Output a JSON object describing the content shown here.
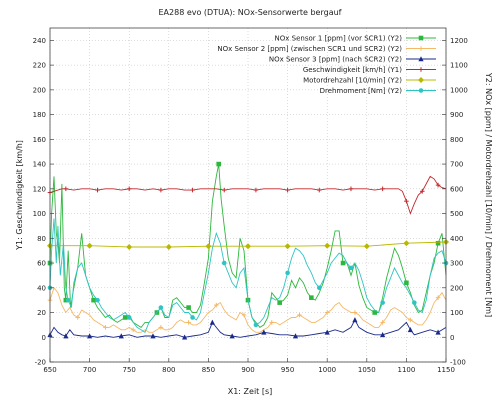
{
  "chart_data": {
    "type": "line",
    "title": "EA288 evo (DTUA): NOx-Sensorwerte bergauf",
    "xlabel": "X1: Zeit [s]",
    "ylabel_left": "Y1: Geschwindigkeit [km/h]",
    "ylabel_right": "Y2: NOx [ppm] / Motordrehzahl [10/min] / Drehmoment [Nm]",
    "xlim": [
      650,
      1150
    ],
    "ylim_left": [
      -20,
      250
    ],
    "ylim_right": [
      -100,
      1250
    ],
    "x_ticks": [
      "650",
      "700",
      "750",
      "800",
      "850",
      "900",
      "950",
      "1000",
      "1050",
      "1100",
      "1150"
    ],
    "y_left_ticks": [
      "-20",
      "0",
      "20",
      "40",
      "60",
      "80",
      "100",
      "120",
      "140",
      "160",
      "180",
      "200",
      "220",
      "240"
    ],
    "y_right_ticks": [
      "-100",
      "0",
      "100",
      "200",
      "300",
      "400",
      "500",
      "600",
      "700",
      "800",
      "900",
      "1000",
      "1100",
      "1200"
    ],
    "grid": true,
    "legend_position": "top-right",
    "series": [
      {
        "name": "NOx Sensor 1 [ppm] (vor SCR1) (Y2)",
        "axis": "right",
        "color": "#2db83d",
        "marker": "square",
        "x": [
          650,
          652,
          655,
          658,
          660,
          662,
          665,
          668,
          670,
          673,
          676,
          680,
          685,
          690,
          695,
          700,
          705,
          710,
          715,
          720,
          725,
          730,
          735,
          740,
          745,
          750,
          755,
          760,
          765,
          770,
          775,
          780,
          785,
          790,
          795,
          800,
          805,
          810,
          815,
          820,
          825,
          830,
          835,
          840,
          845,
          850,
          855,
          860,
          863,
          866,
          870,
          875,
          880,
          885,
          890,
          895,
          900,
          905,
          910,
          915,
          920,
          925,
          930,
          935,
          940,
          945,
          950,
          955,
          960,
          965,
          970,
          975,
          980,
          985,
          990,
          995,
          1000,
          1005,
          1010,
          1015,
          1020,
          1025,
          1030,
          1035,
          1040,
          1045,
          1050,
          1055,
          1060,
          1065,
          1070,
          1075,
          1080,
          1085,
          1090,
          1095,
          1100,
          1105,
          1110,
          1115,
          1120,
          1125,
          1130,
          1135,
          1140,
          1145,
          1150
        ],
        "y": [
          300,
          500,
          650,
          420,
          380,
          300,
          620,
          200,
          150,
          350,
          120,
          200,
          280,
          420,
          250,
          200,
          150,
          120,
          100,
          80,
          90,
          70,
          60,
          70,
          80,
          90,
          60,
          50,
          40,
          60,
          60,
          80,
          100,
          120,
          80,
          80,
          150,
          160,
          140,
          120,
          120,
          100,
          100,
          130,
          220,
          320,
          550,
          650,
          700,
          560,
          450,
          320,
          260,
          240,
          400,
          350,
          150,
          80,
          60,
          40,
          50,
          80,
          180,
          160,
          140,
          150,
          170,
          230,
          200,
          240,
          220,
          180,
          160,
          150,
          180,
          220,
          280,
          350,
          430,
          430,
          300,
          300,
          250,
          300,
          210,
          160,
          120,
          110,
          100,
          100,
          160,
          240,
          300,
          360,
          330,
          280,
          220,
          180,
          130,
          100,
          110,
          180,
          250,
          300,
          380,
          420,
          250
        ]
      },
      {
        "name": "NOx Sensor 2 [ppm] (zwischen SCR1 und SCR2) (Y2)",
        "axis": "right",
        "color": "#f5b865",
        "marker": "plus",
        "x": [
          650,
          655,
          660,
          665,
          670,
          675,
          680,
          685,
          690,
          695,
          700,
          705,
          710,
          715,
          720,
          725,
          730,
          735,
          740,
          745,
          750,
          755,
          760,
          765,
          770,
          775,
          780,
          785,
          790,
          795,
          800,
          805,
          810,
          815,
          820,
          825,
          830,
          835,
          840,
          845,
          850,
          855,
          860,
          865,
          870,
          875,
          880,
          885,
          890,
          895,
          900,
          905,
          910,
          915,
          920,
          925,
          930,
          935,
          940,
          945,
          950,
          955,
          960,
          965,
          970,
          975,
          980,
          985,
          990,
          995,
          1000,
          1005,
          1010,
          1015,
          1020,
          1025,
          1030,
          1035,
          1040,
          1045,
          1050,
          1055,
          1060,
          1065,
          1070,
          1075,
          1080,
          1085,
          1090,
          1095,
          1100,
          1105,
          1110,
          1115,
          1120,
          1125,
          1130,
          1135,
          1140,
          1145,
          1150
        ],
        "y": [
          150,
          200,
          180,
          130,
          100,
          120,
          90,
          80,
          110,
          100,
          90,
          70,
          60,
          50,
          40,
          40,
          50,
          40,
          30,
          30,
          40,
          30,
          20,
          20,
          30,
          20,
          20,
          30,
          40,
          30,
          30,
          40,
          60,
          70,
          60,
          60,
          50,
          50,
          60,
          80,
          100,
          110,
          130,
          140,
          110,
          90,
          80,
          70,
          100,
          90,
          50,
          30,
          20,
          20,
          30,
          40,
          60,
          60,
          50,
          60,
          70,
          80,
          80,
          90,
          80,
          70,
          60,
          60,
          70,
          80,
          100,
          110,
          130,
          140,
          120,
          110,
          100,
          100,
          90,
          70,
          60,
          50,
          40,
          40,
          60,
          80,
          110,
          120,
          110,
          100,
          80,
          70,
          60,
          50,
          50,
          70,
          100,
          140,
          160,
          180,
          150
        ]
      },
      {
        "name": "NOx Sensor 3 [ppm] (nach SCR2) (Y2)",
        "axis": "right",
        "color": "#1a2a8a",
        "marker": "triangle",
        "x": [
          650,
          655,
          660,
          665,
          670,
          675,
          680,
          690,
          700,
          710,
          720,
          730,
          740,
          750,
          760,
          770,
          780,
          790,
          800,
          810,
          820,
          830,
          840,
          850,
          855,
          860,
          865,
          870,
          880,
          890,
          900,
          910,
          920,
          930,
          940,
          950,
          960,
          970,
          980,
          990,
          1000,
          1010,
          1020,
          1030,
          1035,
          1040,
          1050,
          1060,
          1070,
          1080,
          1090,
          1100,
          1105,
          1110,
          1120,
          1130,
          1140,
          1150
        ],
        "y": [
          10,
          40,
          20,
          10,
          5,
          30,
          10,
          5,
          5,
          0,
          5,
          0,
          5,
          10,
          0,
          5,
          5,
          0,
          5,
          10,
          0,
          5,
          10,
          20,
          60,
          40,
          20,
          10,
          5,
          0,
          5,
          10,
          20,
          15,
          10,
          10,
          5,
          5,
          10,
          15,
          20,
          30,
          20,
          40,
          70,
          40,
          20,
          10,
          10,
          20,
          30,
          60,
          30,
          10,
          20,
          30,
          20,
          40
        ]
      },
      {
        "name": "Geschwindigkeit [km/h] (Y1)",
        "axis": "left",
        "color": "#c0282d",
        "marker": "plus",
        "x": [
          650,
          655,
          660,
          665,
          670,
          680,
          690,
          700,
          710,
          720,
          730,
          740,
          750,
          760,
          770,
          780,
          790,
          800,
          810,
          820,
          830,
          840,
          850,
          860,
          870,
          880,
          890,
          900,
          910,
          920,
          930,
          940,
          950,
          960,
          970,
          980,
          990,
          1000,
          1010,
          1020,
          1030,
          1040,
          1050,
          1060,
          1070,
          1080,
          1090,
          1095,
          1100,
          1105,
          1110,
          1115,
          1120,
          1125,
          1130,
          1135,
          1140,
          1145,
          1150
        ],
        "y": [
          117,
          118,
          119,
          120,
          120,
          119,
          120,
          120,
          119,
          120,
          120,
          119,
          120,
          120,
          119,
          120,
          119,
          120,
          120,
          119,
          119,
          120,
          120,
          120,
          119,
          120,
          120,
          120,
          119,
          120,
          120,
          120,
          119,
          120,
          120,
          120,
          119,
          120,
          120,
          119,
          120,
          120,
          120,
          119,
          120,
          120,
          120,
          118,
          110,
          100,
          108,
          115,
          118,
          124,
          130,
          128,
          123,
          121,
          120
        ]
      },
      {
        "name": "Motordrehzahl [10/min] (Y2)",
        "axis": "right",
        "color": "#b8b800",
        "marker": "diamond",
        "x": [
          650,
          700,
          750,
          800,
          850,
          900,
          950,
          1000,
          1050,
          1100,
          1150
        ],
        "y": [
          370,
          370,
          365,
          365,
          368,
          368,
          368,
          370,
          368,
          380,
          385
        ]
      },
      {
        "name": "Drehmoment    [Nm] (Y2)",
        "axis": "right",
        "color": "#2fc4c4",
        "marker": "circle",
        "x": [
          650,
          652,
          655,
          658,
          660,
          663,
          667,
          670,
          673,
          677,
          680,
          685,
          690,
          695,
          700,
          705,
          710,
          715,
          720,
          725,
          730,
          735,
          740,
          745,
          750,
          755,
          760,
          765,
          770,
          775,
          780,
          785,
          790,
          795,
          800,
          805,
          810,
          815,
          820,
          825,
          830,
          835,
          840,
          845,
          850,
          855,
          860,
          865,
          870,
          875,
          880,
          885,
          890,
          895,
          900,
          905,
          910,
          915,
          920,
          925,
          930,
          935,
          940,
          945,
          950,
          955,
          960,
          965,
          970,
          975,
          980,
          985,
          990,
          995,
          1000,
          1005,
          1010,
          1015,
          1020,
          1025,
          1030,
          1035,
          1040,
          1045,
          1050,
          1055,
          1060,
          1065,
          1070,
          1075,
          1080,
          1085,
          1090,
          1095,
          1100,
          1105,
          1110,
          1115,
          1120,
          1125,
          1130,
          1135,
          1140,
          1145,
          1150
        ],
        "y": [
          200,
          350,
          480,
          300,
          450,
          250,
          380,
          200,
          150,
          120,
          220,
          280,
          300,
          250,
          200,
          170,
          150,
          120,
          100,
          80,
          70,
          80,
          90,
          100,
          80,
          60,
          40,
          30,
          20,
          60,
          80,
          100,
          120,
          90,
          80,
          130,
          140,
          120,
          100,
          100,
          80,
          70,
          100,
          180,
          260,
          360,
          420,
          380,
          300,
          260,
          220,
          200,
          260,
          280,
          150,
          80,
          50,
          60,
          80,
          120,
          160,
          150,
          160,
          200,
          260,
          320,
          360,
          350,
          330,
          290,
          260,
          220,
          200,
          230,
          260,
          300,
          320,
          340,
          330,
          300,
          280,
          300,
          270,
          220,
          160,
          130,
          110,
          100,
          140,
          200,
          240,
          280,
          250,
          220,
          200,
          170,
          140,
          110,
          100,
          150,
          250,
          320,
          340,
          350,
          300
        ]
      }
    ]
  }
}
